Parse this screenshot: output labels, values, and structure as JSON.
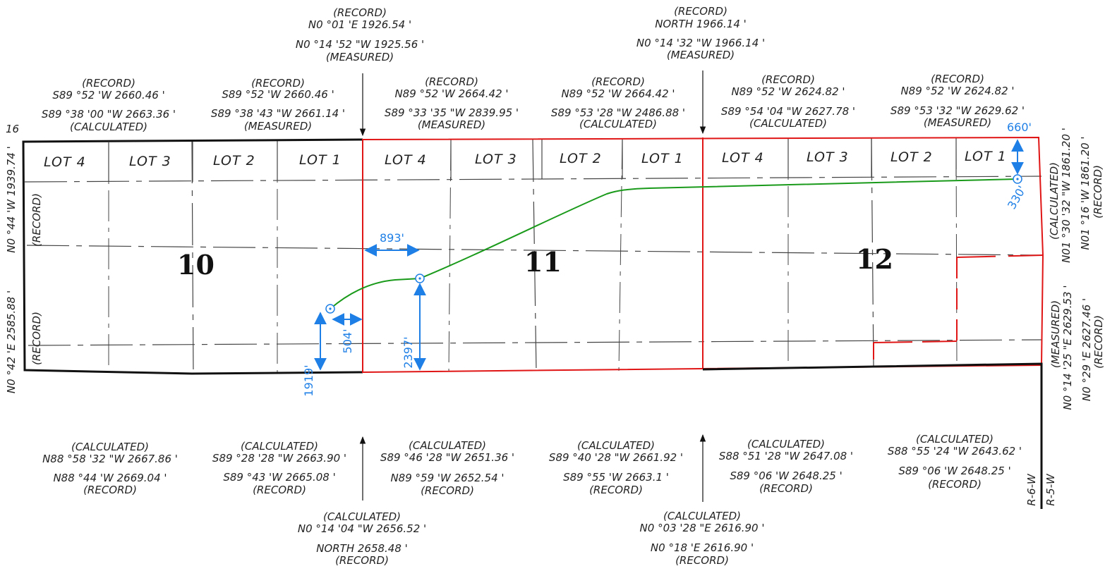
{
  "colors": {
    "boundary_black": "#111111",
    "boundary_red": "#e01515",
    "route_green": "#1a9a1a",
    "dimension_blue": "#1e7fe6"
  },
  "top_note": "16",
  "sections": {
    "s10": "10",
    "s11": "11",
    "s12": "12"
  },
  "lots": {
    "s10": [
      "LOT 4",
      "LOT 3",
      "LOT 2",
      "LOT 1"
    ],
    "s11": [
      "LOT 4",
      "LOT 3",
      "LOT 2",
      "LOT 1"
    ],
    "s12": [
      "LOT 4",
      "LOT 3",
      "LOT 2",
      "LOT 1"
    ]
  },
  "top_lines": {
    "t1": [
      "(RECORD)",
      "S89 °52 'W  2660.46 '",
      "S89 °38 '00 \"W  2663.36 '",
      "(CALCULATED)"
    ],
    "t2": [
      "(RECORD)",
      "S89 °52 'W  2660.46 '",
      "S89 °38 '43 \"W    2661.14 '",
      "(MEASURED)"
    ],
    "t3": [
      "(RECORD)",
      "N89 °52 'W  2664.42 '",
      "S89 °33 '35 \"W  2839.95 '",
      "(MEASURED)"
    ],
    "t4": [
      "(RECORD)",
      "N89 °52 'W  2664.42 '",
      "S89 °53 '28 \"W  2486.88 '",
      "(CALCULATED)"
    ],
    "t5": [
      "(RECORD)",
      "N89 °52 'W  2624.82 '",
      "S89 °54 '04 \"W  2627.78 '",
      "(CALCULATED)"
    ],
    "t6": [
      "(RECORD)",
      "N89 °52 'W  2624.82 '",
      "S89 °53 '32 \"W  2629.62 '",
      "(MEASURED)"
    ]
  },
  "top_vertical": {
    "v1": [
      "(RECORD)",
      "N0 °01 'E  1926.54 '",
      "N0 °14 '52 \"W  1925.56 '",
      "(MEASURED)"
    ],
    "v2": [
      "(RECORD)",
      "NORTH  1966.14 '",
      "N0 °14 '32 \"W  1966.14 '",
      "(MEASURED)"
    ]
  },
  "bottom_lines": {
    "b1": [
      "(CALCULATED)",
      "N88 °58 '32 \"W  2667.86 '",
      "N88 °44 'W  2669.04 '",
      "(RECORD)"
    ],
    "b2": [
      "(CALCULATED)",
      "S89 °28 '28 \"W  2663.90 '",
      "S89 °43 'W  2665.08 '",
      "(RECORD)"
    ],
    "b3": [
      "(CALCULATED)",
      "S89 °46 '28 \"W  2651.36 '",
      "N89 °59 'W  2652.54 '",
      "(RECORD)"
    ],
    "b4": [
      "(CALCULATED)",
      "S89 °40 '28 \"W  2661.92 '",
      "S89 °55 'W  2663.1 '",
      "(RECORD)"
    ],
    "b5": [
      "(CALCULATED)",
      "S88 °51 '28 \"W  2647.08 '",
      "S89 °06 'W  2648.25 '",
      "(RECORD)"
    ],
    "b6": [
      "(CALCULATED)",
      "S88 °55 '24 \"W  2643.62 '",
      "S89 °06 'W  2648.25 '",
      "(RECORD)"
    ]
  },
  "bottom_vertical": {
    "v1": [
      "(CALCULATED)",
      "N0 °14 '04 \"W  2656.52 '",
      "NORTH  2658.48 '",
      "(RECORD)"
    ],
    "v2": [
      "(CALCULATED)",
      "N0 °03 '28 \"E  2616.90 '",
      "N0 °18 'E  2616.90 '",
      "(RECORD)"
    ]
  },
  "left_side": {
    "upper_bearing": "N0 °44 'W  1939.74 '",
    "upper_tag": "(RECORD)",
    "lower_bearing": "N0 °42 'E  2585.88 '",
    "lower_tag": "(RECORD)"
  },
  "right_side": {
    "upper": [
      "(CALCULATED)",
      "N01 °30 '32 \"W  1861.20 '",
      "N01 °16 'W  1861.20 '",
      "(RECORD)"
    ],
    "lower": [
      "(MEASURED)",
      "N0 °14 '25 \"E  2629.53 '",
      "N0 °29 'E  2627.46 '",
      "(RECORD)"
    ]
  },
  "range": {
    "r6": "R-6-W",
    "r5": "R-5-W"
  },
  "dimensions": {
    "d660": "660'",
    "d330": "330'",
    "d893": "893'",
    "d504": "504'",
    "d1919": "1919'",
    "d2397": "2397'"
  }
}
